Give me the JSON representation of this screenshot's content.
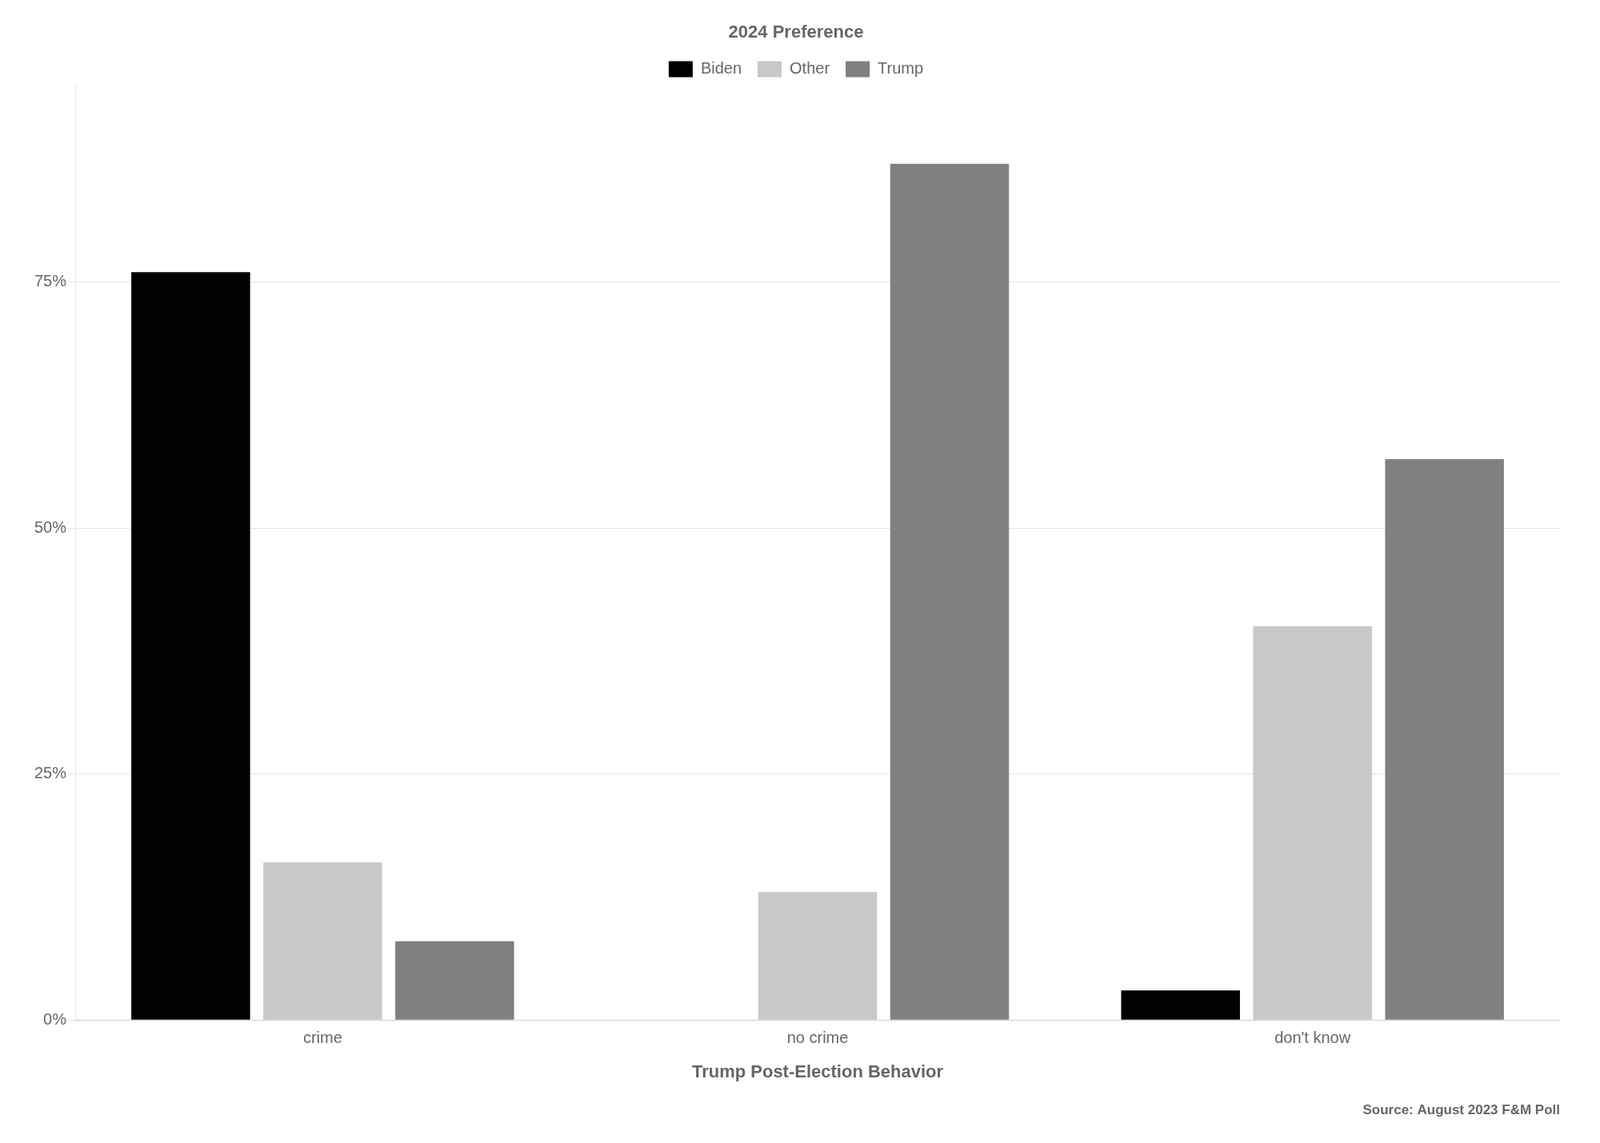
{
  "chart_data": {
    "type": "bar",
    "categories": [
      "crime",
      "no crime",
      "don't know"
    ],
    "series": [
      {
        "name": "Biden",
        "color": "#000000",
        "values": [
          0.76,
          0.0,
          0.03
        ]
      },
      {
        "name": "Other",
        "color": "#c8c8c8",
        "values": [
          0.16,
          0.13,
          0.4
        ]
      },
      {
        "name": "Trump",
        "color": "#808080",
        "values": [
          0.08,
          0.87,
          0.57
        ]
      }
    ],
    "legend_title": "2024 Preference",
    "xlabel": "Trump Post-Election Behavior",
    "annotations": [
      "Source: August 2023 F&M Poll"
    ],
    "ylim": [
      0,
      0.95
    ],
    "yticks": [
      {
        "value": 0,
        "label": "0%"
      },
      {
        "value": 0.25,
        "label": "25%"
      },
      {
        "value": 0.5,
        "label": "50%"
      },
      {
        "value": 0.75,
        "label": "75%"
      }
    ],
    "grid": true,
    "legend": "top"
  }
}
